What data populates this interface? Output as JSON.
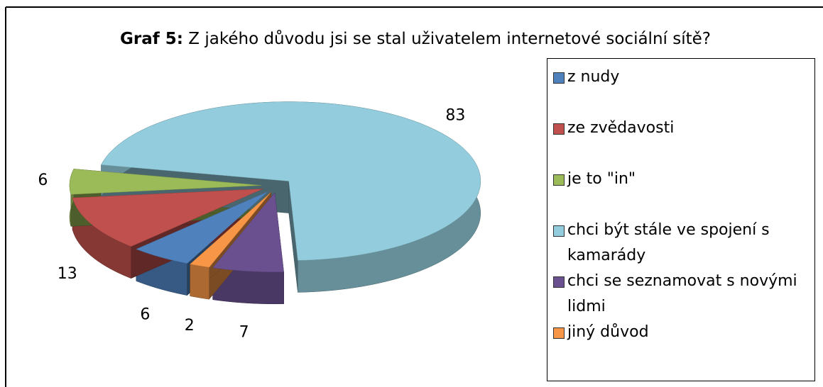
{
  "chart_data": {
    "type": "pie",
    "title_label": "Graf 5:",
    "title": "Z jakého důvodu jsi se stal uživatelem internetové sociální sítě?",
    "categories": [
      "z nudy",
      "ze zvědavosti",
      "je to \"in\"",
      "chci být stále ve spojení s kamarády",
      "chci se seznamovat s novými lidmi",
      "jiný důvod"
    ],
    "values": [
      6,
      13,
      6,
      83,
      7,
      2
    ],
    "colors": [
      "#4f81bd",
      "#c0504d",
      "#9bbb59",
      "#93cddd",
      "#6b5090",
      "#f79646"
    ],
    "legend": "right"
  }
}
